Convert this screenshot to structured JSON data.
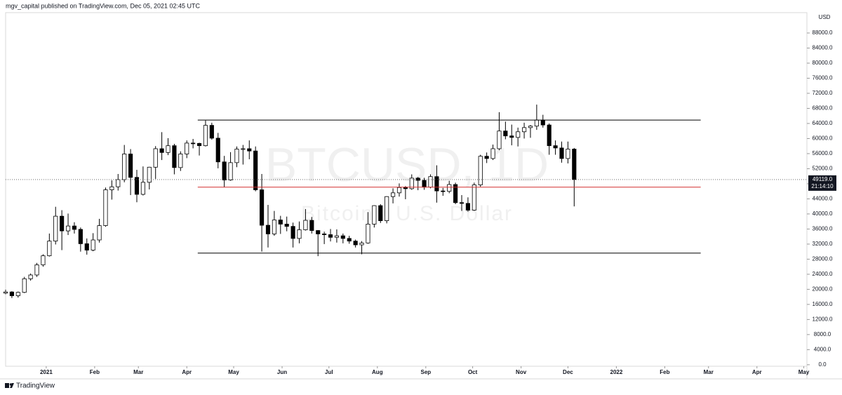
{
  "chart_data": {
    "type": "candlestick",
    "header": "mgv_capital published on TradingView.com, Dec 05, 2021 02:45 UTC",
    "watermark": "BTCUSD, 1D",
    "watermark_subtitle": "Bitcoin / U.S. Dollar",
    "currency": "USD",
    "footer": "TradingView",
    "up_color": "#ffffff",
    "down_color": "#000000",
    "edge_color": "#000000",
    "grid": false,
    "xlim": [
      -26,
      487
    ],
    "ylim": [
      -400,
      93400
    ],
    "xticks": [
      {
        "value": 0,
        "label": "2021"
      },
      {
        "value": 31,
        "label": "Feb"
      },
      {
        "value": 59,
        "label": "Mar"
      },
      {
        "value": 90,
        "label": "Apr"
      },
      {
        "value": 120,
        "label": "May"
      },
      {
        "value": 151,
        "label": "Jun"
      },
      {
        "value": 181,
        "label": "Jul"
      },
      {
        "value": 212,
        "label": "Aug"
      },
      {
        "value": 243,
        "label": "Sep"
      },
      {
        "value": 273,
        "label": "Oct"
      },
      {
        "value": 304,
        "label": "Nov"
      },
      {
        "value": 334,
        "label": "Dec"
      },
      {
        "value": 365,
        "label": "2022"
      },
      {
        "value": 396,
        "label": "Feb"
      },
      {
        "value": 424,
        "label": "Mar"
      },
      {
        "value": 455,
        "label": "Apr"
      },
      {
        "value": 485,
        "label": "May"
      }
    ],
    "yticks": [
      {
        "value": 0,
        "label": "0.0"
      },
      {
        "value": 4000,
        "label": "4000.0"
      },
      {
        "value": 8000,
        "label": "8000.0"
      },
      {
        "value": 12000,
        "label": "12000.0"
      },
      {
        "value": 16000,
        "label": "16000.0"
      },
      {
        "value": 20000,
        "label": "20000.0"
      },
      {
        "value": 24000,
        "label": "24000.0"
      },
      {
        "value": 28000,
        "label": "28000.0"
      },
      {
        "value": 32000,
        "label": "32000.0"
      },
      {
        "value": 36000,
        "label": "36000.0"
      },
      {
        "value": 40000,
        "label": "40000.0"
      },
      {
        "value": 44000,
        "label": "44000.0"
      },
      {
        "value": 48000,
        "label": "48000.0"
      },
      {
        "value": 52000,
        "label": "52000.0"
      },
      {
        "value": 56000,
        "label": "56000.0"
      },
      {
        "value": 60000,
        "label": "60000.0"
      },
      {
        "value": 64000,
        "label": "64000.0"
      },
      {
        "value": 68000,
        "label": "68000.0"
      },
      {
        "value": 72000,
        "label": "72000.0"
      },
      {
        "value": 76000,
        "label": "76000.0"
      },
      {
        "value": 80000,
        "label": "80000.0"
      },
      {
        "value": 84000,
        "label": "84000.0"
      },
      {
        "value": 88000,
        "label": "88000.0"
      }
    ],
    "last_price": {
      "value": 49119,
      "label": "49119.0"
    },
    "countdown": "21:14:10",
    "levels": [
      {
        "value": 64900,
        "color": "#000000",
        "x": [
          97,
          419
        ]
      },
      {
        "value": 47100,
        "color": "#d32f2f",
        "x": [
          97,
          419
        ]
      },
      {
        "value": 29600,
        "color": "#000000",
        "x": [
          97,
          419
        ]
      }
    ],
    "x": [
      -26,
      -22,
      -18,
      -14,
      -10,
      -6,
      -2,
      2,
      6,
      10,
      14,
      18,
      22,
      26,
      30,
      34,
      38,
      42,
      46,
      50,
      54,
      58,
      62,
      66,
      70,
      74,
      78,
      82,
      86,
      90,
      94,
      98,
      102,
      106,
      110,
      114,
      118,
      122,
      126,
      130,
      134,
      138,
      142,
      146,
      150,
      154,
      158,
      162,
      166,
      170,
      174,
      178,
      182,
      186,
      190,
      194,
      198,
      202,
      206,
      210,
      214,
      218,
      222,
      226,
      230,
      234,
      238,
      242,
      246,
      250,
      254,
      258,
      262,
      266,
      270,
      274,
      278,
      282,
      286,
      290,
      294,
      298,
      302,
      306,
      310,
      314,
      318,
      322,
      326,
      330,
      334,
      338
    ],
    "open": [
      19000,
      19300,
      18300,
      19200,
      22800,
      23800,
      26500,
      28900,
      32800,
      39400,
      35500,
      36800,
      35900,
      32100,
      30400,
      33100,
      36900,
      46400,
      47200,
      49100,
      55900,
      49700,
      45200,
      48400,
      52400,
      57300,
      56300,
      58100,
      52300,
      55900,
      58800,
      58700,
      58100,
      63500,
      60100,
      53800,
      49000,
      53600,
      57200,
      57300,
      56700,
      46400,
      37000,
      34700,
      38400,
      37300,
      36700,
      33500,
      35800,
      38300,
      35600,
      34700,
      34500,
      33800,
      34200,
      33500,
      32800,
      31800,
      32300,
      37300,
      42200,
      38200,
      44600,
      45600,
      47000,
      46700,
      49500,
      48900,
      47100,
      49900,
      46100,
      46000,
      47800,
      43000,
      42800,
      41000,
      47700,
      55300,
      54700,
      57300,
      62000,
      60700,
      60300,
      61800,
      62900,
      63300,
      64900,
      63600,
      58100,
      57500,
      54700,
      57200
    ],
    "high": [
      19900,
      19500,
      19400,
      23300,
      24200,
      27000,
      29300,
      34800,
      41900,
      41000,
      40100,
      37800,
      36400,
      33500,
      34900,
      38700,
      47000,
      48900,
      50600,
      58300,
      57200,
      51700,
      52600,
      52500,
      58000,
      61700,
      60100,
      58600,
      56600,
      59500,
      59900,
      58900,
      64800,
      64200,
      61500,
      55400,
      56400,
      57900,
      58300,
      59500,
      57900,
      50600,
      42400,
      40800,
      39500,
      39300,
      37700,
      38000,
      41300,
      39200,
      35700,
      35300,
      36000,
      35900,
      34800,
      34200,
      33200,
      32800,
      40500,
      42300,
      42600,
      44700,
      46800,
      48100,
      47400,
      50500,
      49800,
      49600,
      50500,
      52900,
      46900,
      48800,
      48300,
      45000,
      44400,
      48300,
      55700,
      56300,
      58400,
      67000,
      64500,
      63700,
      62900,
      64200,
      63600,
      69000,
      66300,
      64000,
      59500,
      59200,
      59200,
      57500
    ],
    "low": [
      18700,
      17700,
      17800,
      19000,
      22300,
      23300,
      26000,
      28700,
      31900,
      30400,
      34400,
      34800,
      30000,
      29200,
      30100,
      32400,
      36600,
      43800,
      46200,
      48400,
      45000,
      43100,
      44900,
      46500,
      49300,
      54300,
      55600,
      50500,
      51400,
      54800,
      57400,
      55500,
      57900,
      59700,
      52100,
      47100,
      48800,
      52400,
      53100,
      54500,
      46000,
      30000,
      31100,
      34200,
      34700,
      35400,
      31100,
      32200,
      35600,
      34800,
      28800,
      32000,
      32700,
      32400,
      32200,
      32100,
      31100,
      29300,
      32100,
      36400,
      37600,
      37500,
      42800,
      44600,
      43900,
      46400,
      46300,
      46400,
      46800,
      43000,
      44800,
      45500,
      42600,
      40800,
      40600,
      40800,
      47200,
      53500,
      54300,
      56900,
      59800,
      58200,
      57900,
      60000,
      60200,
      62300,
      62900,
      55700,
      55700,
      53600,
      53400,
      42000
    ],
    "close": [
      19300,
      18300,
      19200,
      22800,
      23800,
      26500,
      28900,
      32800,
      39400,
      35500,
      36800,
      35900,
      32100,
      30400,
      33100,
      36900,
      46400,
      47200,
      49100,
      55900,
      49700,
      45200,
      48400,
      52400,
      57300,
      56300,
      58100,
      52300,
      55900,
      58800,
      58700,
      58100,
      63500,
      60100,
      53800,
      49000,
      53600,
      57200,
      57300,
      56700,
      46400,
      37000,
      34700,
      38400,
      37300,
      36700,
      33500,
      35800,
      38300,
      35600,
      34700,
      34500,
      33800,
      34200,
      33500,
      32800,
      31800,
      32300,
      37300,
      42200,
      38200,
      44600,
      45600,
      47000,
      46700,
      49500,
      48900,
      47100,
      49900,
      46100,
      46000,
      47800,
      43000,
      42800,
      41000,
      47700,
      55300,
      54700,
      57300,
      62000,
      60700,
      60300,
      61800,
      62900,
      63300,
      64900,
      63600,
      58100,
      57500,
      54700,
      57200,
      49119
    ]
  }
}
